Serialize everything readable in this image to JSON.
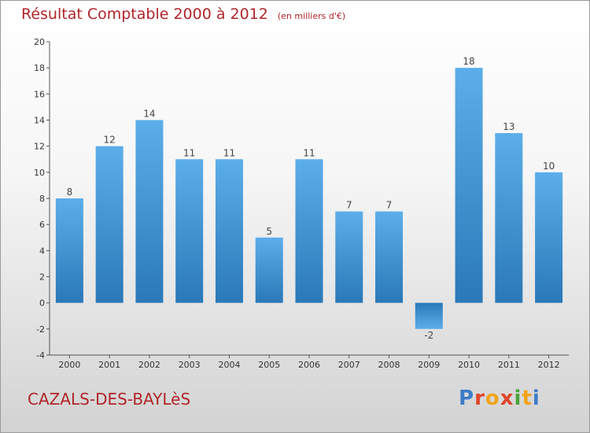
{
  "title": "Résultat Comptable 2000 à 2012",
  "unit": "(en milliers d'€)",
  "commune": "CAZALS-DES-BAYLèS",
  "brand": {
    "text": "Proxiti",
    "letter_colors": [
      "#3d7cc9",
      "#e0442a",
      "#f2a31b",
      "#e0442a",
      "#4aa33b",
      "#f2a31b",
      "#3d7cc9"
    ]
  },
  "chart_data": {
    "type": "bar",
    "title": "Résultat Comptable 2000 à 2012",
    "subtitle": "(en milliers d'€)",
    "categories": [
      "2000",
      "2001",
      "2002",
      "2003",
      "2004",
      "2005",
      "2006",
      "2007",
      "2008",
      "2009",
      "2010",
      "2011",
      "2012"
    ],
    "values": [
      8,
      12,
      14,
      11,
      11,
      5,
      11,
      7,
      7,
      -2,
      18,
      13,
      10
    ],
    "ylim": [
      -4,
      20
    ],
    "yticks": [
      -4,
      -2,
      0,
      2,
      4,
      6,
      8,
      10,
      12,
      14,
      16,
      18,
      20
    ],
    "grid": false,
    "bar_color": "#4a9fe0",
    "label_color": "#444444"
  }
}
